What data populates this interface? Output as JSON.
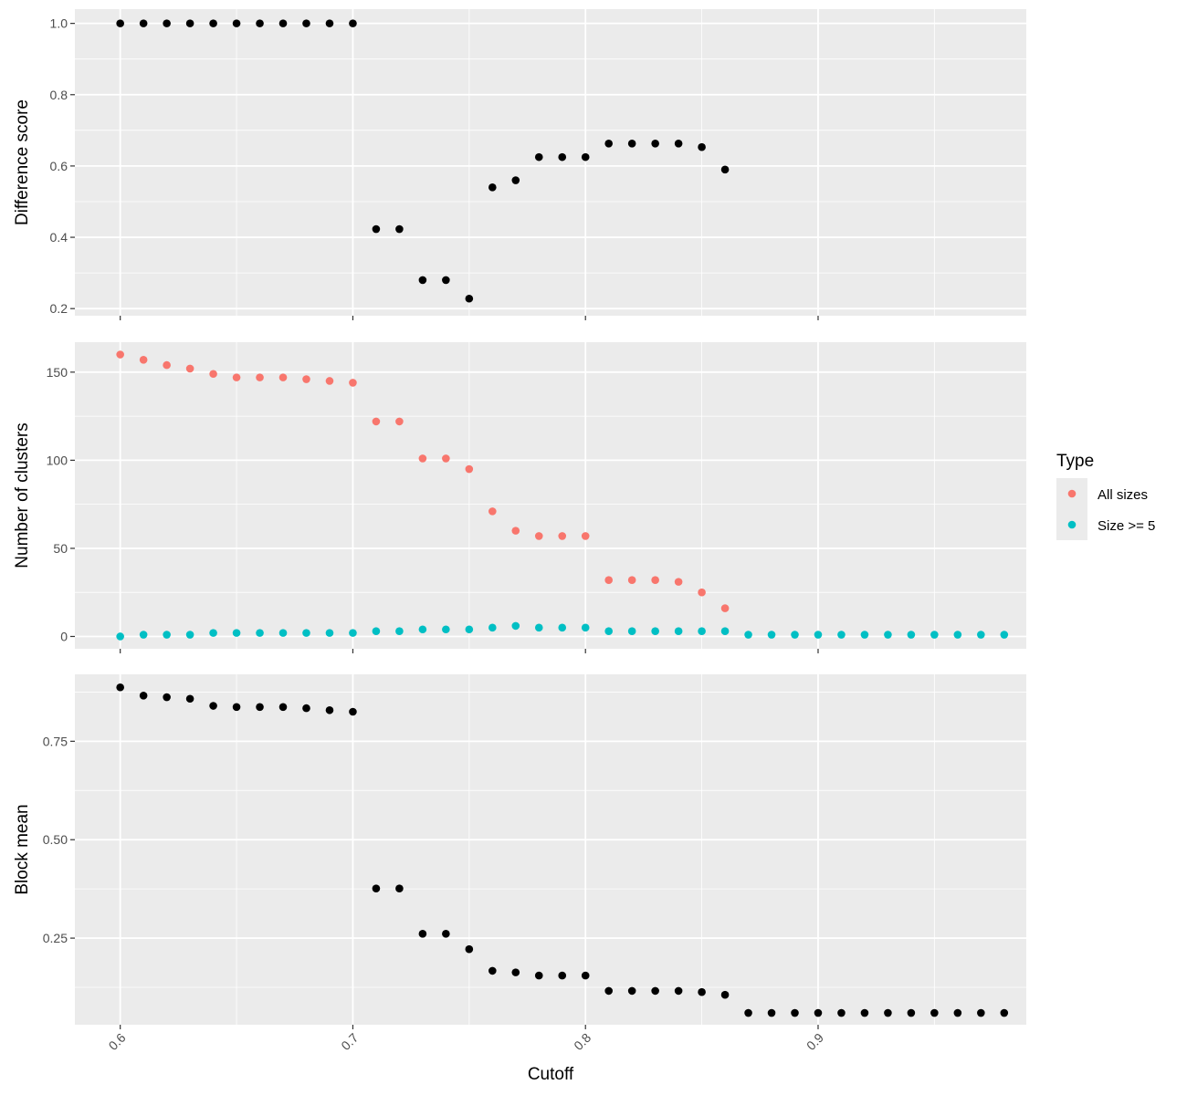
{
  "colors": {
    "panel_bg": "#ebebeb",
    "grid_major": "#ffffff",
    "tick": "#333333",
    "point_default": "#000000",
    "all_sizes": "#f8766d",
    "size_ge_5": "#00bfc4"
  },
  "chart_data": {
    "type": "scatter",
    "layout": "faceted-vertical",
    "xlabel": "Cutoff",
    "xlim": [
      0.5805,
      0.9895
    ],
    "x_ticks": [
      0.6,
      0.7,
      0.8,
      0.9
    ],
    "x_tick_labels": [
      "0.6",
      "0.7",
      "0.8",
      "0.9"
    ],
    "x_tick_rotation": "45",
    "grid": true,
    "legend": {
      "title": "Type",
      "placement": "right",
      "entries": [
        {
          "label": "All sizes",
          "color": "#f8766d"
        },
        {
          "label": "Size >= 5",
          "color": "#00bfc4"
        }
      ]
    },
    "panels": [
      {
        "ylabel": "Difference score",
        "ylim": [
          0.18,
          1.04
        ],
        "y_ticks": [
          0.2,
          0.4,
          0.6,
          0.8,
          1.0
        ],
        "y_tick_labels": [
          "0.2",
          "0.4",
          "0.6",
          "0.8",
          "1.0"
        ],
        "series": [
          {
            "color": "#000000",
            "x": [
              0.6,
              0.61,
              0.62,
              0.63,
              0.64,
              0.65,
              0.66,
              0.67,
              0.68,
              0.69,
              0.7,
              0.71,
              0.72,
              0.73,
              0.74,
              0.75,
              0.76,
              0.77,
              0.78,
              0.79,
              0.8,
              0.81,
              0.82,
              0.83,
              0.84,
              0.85,
              0.86
            ],
            "y": [
              1.0,
              1.0,
              1.0,
              1.0,
              1.0,
              1.0,
              1.0,
              1.0,
              1.0,
              1.0,
              1.0,
              0.423,
              0.423,
              0.28,
              0.28,
              0.228,
              0.54,
              0.56,
              0.625,
              0.625,
              0.625,
              0.663,
              0.663,
              0.663,
              0.663,
              0.653,
              0.59
            ]
          }
        ]
      },
      {
        "ylabel": "Number of clusters",
        "ylim": [
          -7,
          167
        ],
        "y_ticks": [
          0,
          50,
          100,
          150
        ],
        "y_tick_labels": [
          "0",
          "50",
          "100",
          "150"
        ],
        "series": [
          {
            "name": "All sizes",
            "color": "#f8766d",
            "x": [
              0.6,
              0.61,
              0.62,
              0.63,
              0.64,
              0.65,
              0.66,
              0.67,
              0.68,
              0.69,
              0.7,
              0.71,
              0.72,
              0.73,
              0.74,
              0.75,
              0.76,
              0.77,
              0.78,
              0.79,
              0.8,
              0.81,
              0.82,
              0.83,
              0.84,
              0.85,
              0.86
            ],
            "y": [
              160,
              157,
              154,
              152,
              149,
              147,
              147,
              147,
              146,
              145,
              144,
              122,
              122,
              101,
              101,
              95,
              71,
              60,
              57,
              57,
              57,
              32,
              32,
              32,
              31,
              25,
              16
            ]
          },
          {
            "name": "Size >= 5",
            "color": "#00bfc4",
            "x": [
              0.6,
              0.61,
              0.62,
              0.63,
              0.64,
              0.65,
              0.66,
              0.67,
              0.68,
              0.69,
              0.7,
              0.71,
              0.72,
              0.73,
              0.74,
              0.75,
              0.76,
              0.77,
              0.78,
              0.79,
              0.8,
              0.81,
              0.82,
              0.83,
              0.84,
              0.85,
              0.86,
              0.87,
              0.88,
              0.89,
              0.9,
              0.91,
              0.92,
              0.93,
              0.94,
              0.95,
              0.96,
              0.97,
              0.98
            ],
            "y": [
              0,
              1,
              1,
              1,
              2,
              2,
              2,
              2,
              2,
              2,
              2,
              3,
              3,
              4,
              4,
              4,
              5,
              6,
              5,
              5,
              5,
              3,
              3,
              3,
              3,
              3,
              3,
              1,
              1,
              1,
              1,
              1,
              1,
              1,
              1,
              1,
              1,
              1,
              1
            ]
          }
        ]
      },
      {
        "ylabel": "Block mean",
        "ylim": [
          0.03,
          0.92
        ],
        "y_ticks": [
          0.25,
          0.5,
          0.75
        ],
        "y_tick_labels": [
          "0.25",
          "0.50",
          "0.75"
        ],
        "series": [
          {
            "color": "#000000",
            "x": [
              0.6,
              0.61,
              0.62,
              0.63,
              0.64,
              0.65,
              0.66,
              0.67,
              0.68,
              0.69,
              0.7,
              0.71,
              0.72,
              0.73,
              0.74,
              0.75,
              0.76,
              0.77,
              0.78,
              0.79,
              0.8,
              0.81,
              0.82,
              0.83,
              0.84,
              0.85,
              0.86,
              0.87,
              0.88,
              0.89,
              0.9,
              0.91,
              0.92,
              0.93,
              0.94,
              0.95,
              0.96,
              0.97,
              0.98
            ],
            "y": [
              0.887,
              0.866,
              0.862,
              0.858,
              0.84,
              0.837,
              0.837,
              0.837,
              0.834,
              0.829,
              0.825,
              0.376,
              0.376,
              0.261,
              0.261,
              0.222,
              0.167,
              0.163,
              0.155,
              0.155,
              0.155,
              0.116,
              0.116,
              0.116,
              0.116,
              0.113,
              0.106,
              0.06,
              0.06,
              0.06,
              0.06,
              0.06,
              0.06,
              0.06,
              0.06,
              0.06,
              0.06,
              0.06,
              0.06
            ]
          }
        ]
      }
    ]
  }
}
